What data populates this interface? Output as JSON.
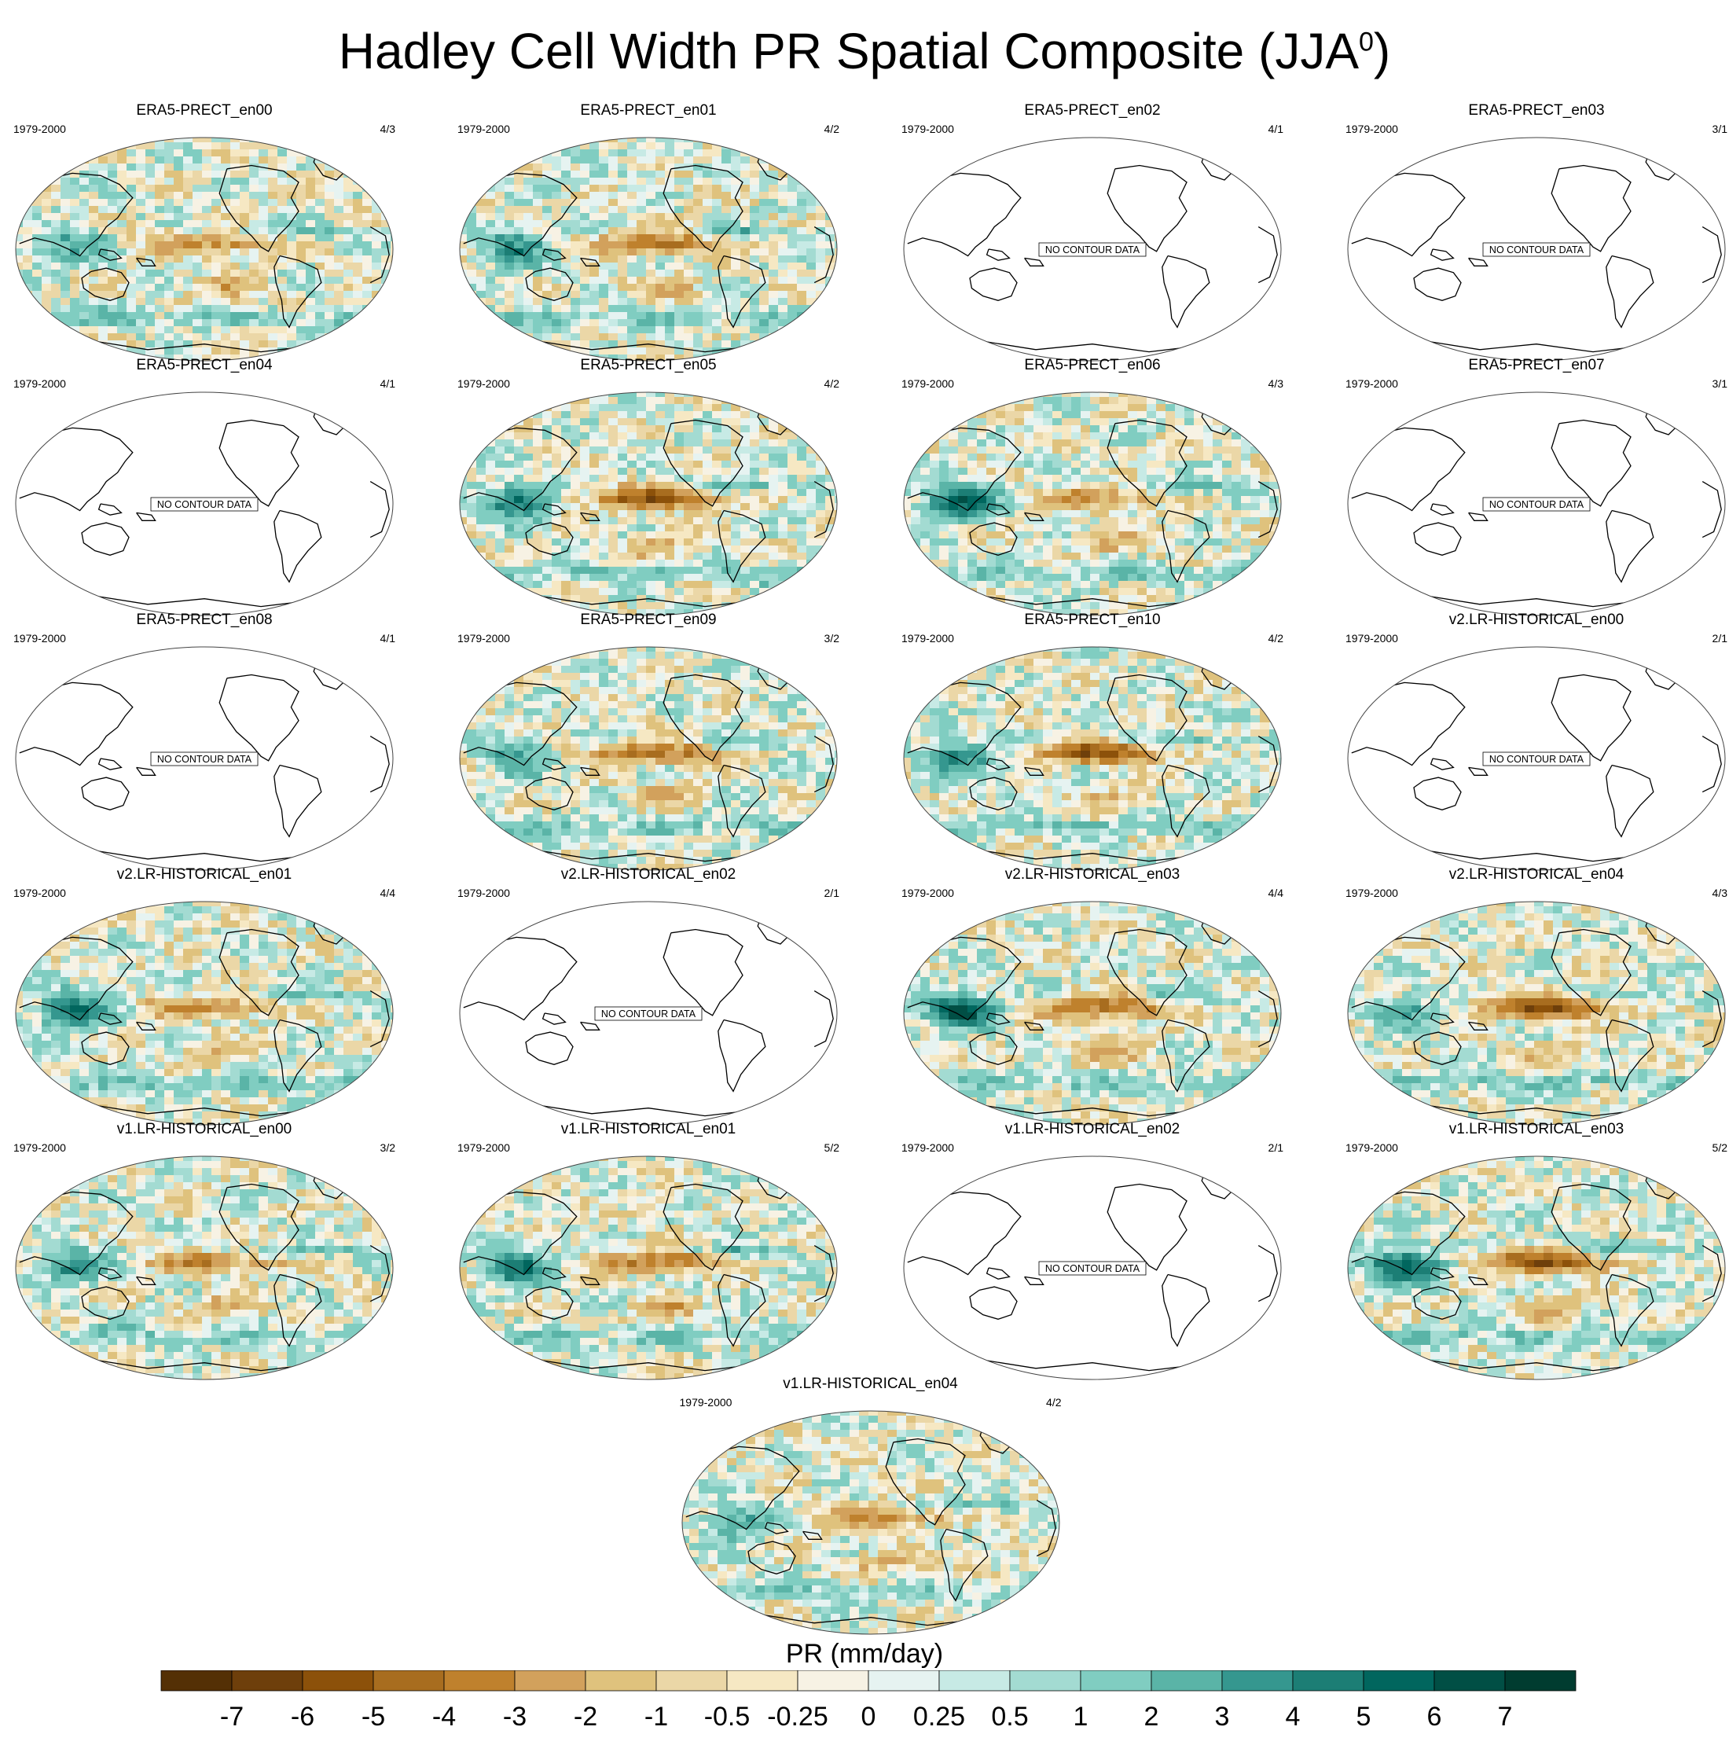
{
  "title": "Hadley Cell Width PR Spatial Composite (JJA",
  "title_sup": "0",
  "title_end": ")",
  "chart_data": {
    "type": "heatmap",
    "title": "Hadley Cell Width PR Spatial Composite (JJA0)",
    "no_data_label": "NO CONTOUR DATA",
    "panels": [
      {
        "name": "ERA5-PRECT_en00",
        "years": "1979-2000",
        "ratio": "4/3",
        "has_data": true,
        "pattern": 0
      },
      {
        "name": "ERA5-PRECT_en01",
        "years": "1979-2000",
        "ratio": "4/2",
        "has_data": true,
        "pattern": 1
      },
      {
        "name": "ERA5-PRECT_en02",
        "years": "1979-2000",
        "ratio": "4/1",
        "has_data": false
      },
      {
        "name": "ERA5-PRECT_en03",
        "years": "1979-2000",
        "ratio": "3/1",
        "has_data": false
      },
      {
        "name": "ERA5-PRECT_en04",
        "years": "1979-2000",
        "ratio": "4/1",
        "has_data": false
      },
      {
        "name": "ERA5-PRECT_en05",
        "years": "1979-2000",
        "ratio": "4/2",
        "has_data": true,
        "pattern": 2
      },
      {
        "name": "ERA5-PRECT_en06",
        "years": "1979-2000",
        "ratio": "4/3",
        "has_data": true,
        "pattern": 3
      },
      {
        "name": "ERA5-PRECT_en07",
        "years": "1979-2000",
        "ratio": "3/1",
        "has_data": false
      },
      {
        "name": "ERA5-PRECT_en08",
        "years": "1979-2000",
        "ratio": "4/1",
        "has_data": false
      },
      {
        "name": "ERA5-PRECT_en09",
        "years": "1979-2000",
        "ratio": "3/2",
        "has_data": true,
        "pattern": 4
      },
      {
        "name": "ERA5-PRECT_en10",
        "years": "1979-2000",
        "ratio": "4/2",
        "has_data": true,
        "pattern": 5
      },
      {
        "name": "v2.LR-HISTORICAL_en00",
        "years": "1979-2000",
        "ratio": "2/1",
        "has_data": false
      },
      {
        "name": "v2.LR-HISTORICAL_en01",
        "years": "1979-2000",
        "ratio": "4/4",
        "has_data": true,
        "pattern": 6
      },
      {
        "name": "v2.LR-HISTORICAL_en02",
        "years": "1979-2000",
        "ratio": "2/1",
        "has_data": false
      },
      {
        "name": "v2.LR-HISTORICAL_en03",
        "years": "1979-2000",
        "ratio": "4/4",
        "has_data": true,
        "pattern": 7
      },
      {
        "name": "v2.LR-HISTORICAL_en04",
        "years": "1979-2000",
        "ratio": "4/3",
        "has_data": true,
        "pattern": 8
      },
      {
        "name": "v1.LR-HISTORICAL_en00",
        "years": "1979-2000",
        "ratio": "3/2",
        "has_data": true,
        "pattern": 9
      },
      {
        "name": "v1.LR-HISTORICAL_en01",
        "years": "1979-2000",
        "ratio": "5/2",
        "has_data": true,
        "pattern": 10
      },
      {
        "name": "v1.LR-HISTORICAL_en02",
        "years": "1979-2000",
        "ratio": "2/1",
        "has_data": false
      },
      {
        "name": "v1.LR-HISTORICAL_en03",
        "years": "1979-2000",
        "ratio": "5/2",
        "has_data": true,
        "pattern": 11
      },
      {
        "name": "v1.LR-HISTORICAL_en04",
        "years": "1979-2000",
        "ratio": "4/2",
        "has_data": true,
        "pattern": 12
      }
    ],
    "colorbar": {
      "label": "PR (mm/day)",
      "ticks": [
        "-7",
        "-6",
        "-5",
        "-4",
        "-3",
        "-2",
        "-1",
        "-0.5",
        "-0.25",
        "0",
        "0.25",
        "0.5",
        "1",
        "2",
        "3",
        "4",
        "5",
        "6",
        "7"
      ],
      "colors": [
        "#543005",
        "#6e3f0b",
        "#8c510a",
        "#a86d1f",
        "#bf812d",
        "#d2a15c",
        "#dfc27d",
        "#ebd7a7",
        "#f6e8c3",
        "#f7f2e4",
        "#e6f3f1",
        "#c7eae5",
        "#a3dbd2",
        "#80cdc1",
        "#5ab4a7",
        "#35978f",
        "#1c7e75",
        "#01665e",
        "#014f45",
        "#003c30"
      ]
    }
  }
}
